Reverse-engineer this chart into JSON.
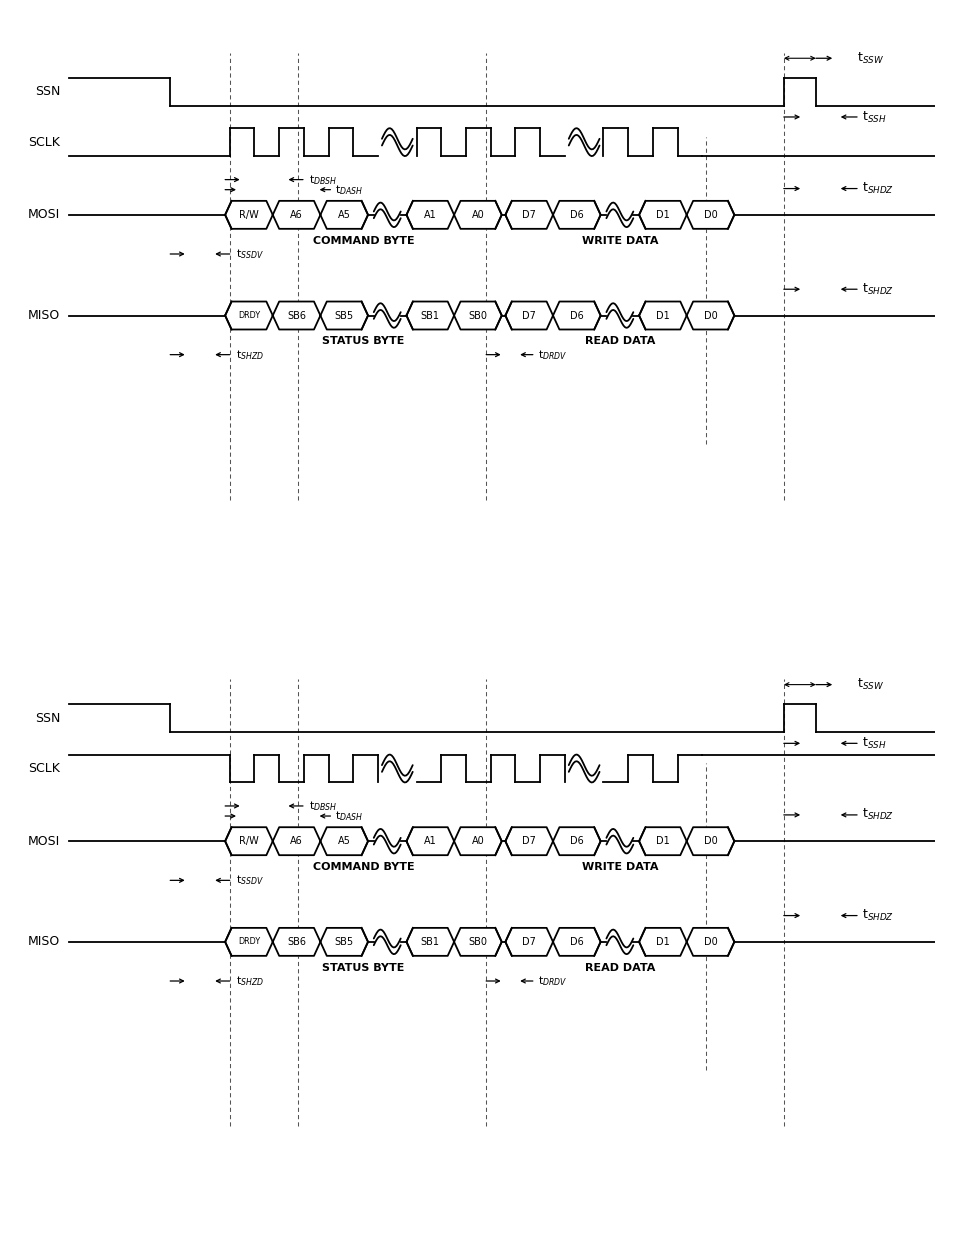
{
  "bg_color": "#ffffff",
  "line_color": "#000000",
  "mosi_grp1": [
    "R/W",
    "A6",
    "A5"
  ],
  "mosi_grp2": [
    "A1",
    "A0"
  ],
  "mosi_grp3": [
    "D7",
    "D6"
  ],
  "mosi_grp4": [
    "D1",
    "D0"
  ],
  "miso_grp1": [
    "DRDY",
    "SB6",
    "SB5"
  ],
  "miso_grp2": [
    "SB1",
    "SB0"
  ],
  "miso_grp3": [
    "D7",
    "D6"
  ],
  "miso_grp4": [
    "D1",
    "D0"
  ],
  "t_SSW": "t$_{SSW}$",
  "t_SSH": "t$_{SSH}$",
  "t_DBSH": "t$_{DBSH}$",
  "t_DASH": "t$_{DASH}$",
  "t_SSDV": "t$_{SSDV}$",
  "t_SHDZ": "t$_{SHDZ}$",
  "t_SHZD": "t$_{SHZD}$",
  "t_DRDV": "t$_{DRDV}$",
  "label_SSN": "SSN",
  "label_SCLK": "SCLK",
  "label_MOSI": "MOSI",
  "label_MISO": "MISO",
  "label_cmd": "COMMAND BYTE",
  "label_wd": "WRITE DATA",
  "label_sb": "STATUS BYTE",
  "label_rd": "READ DATA"
}
